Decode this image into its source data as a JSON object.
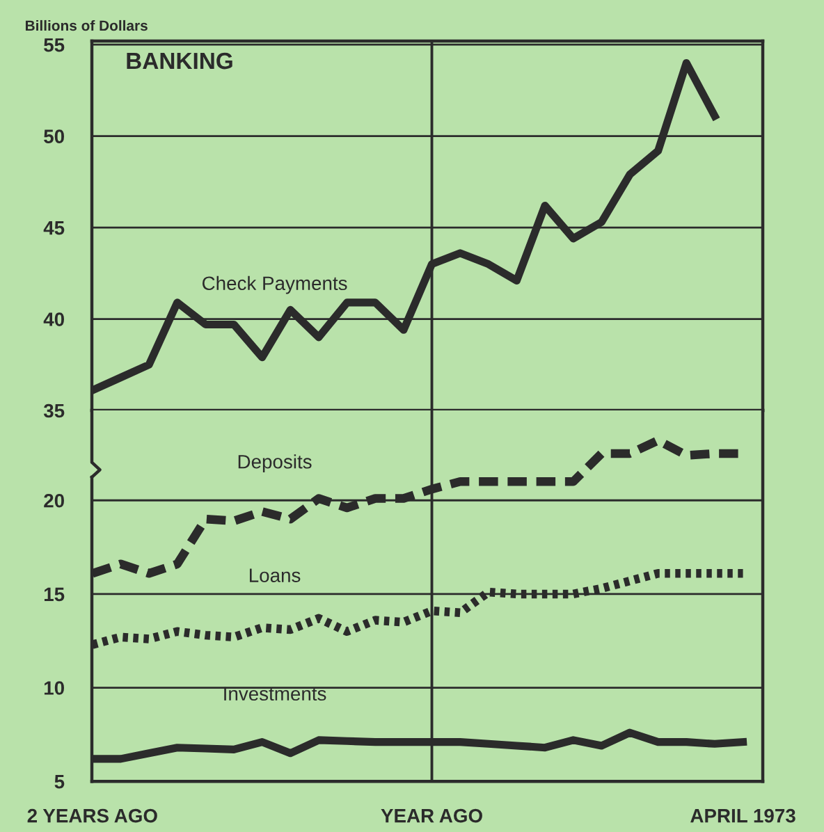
{
  "chart_data": [
    {
      "type": "line",
      "title": "BANKING",
      "ylabel": "Billions of Dollars",
      "ylim": [
        35,
        55.2
      ],
      "yticks": [
        35,
        40,
        45,
        50,
        55
      ],
      "tick_labels": "y",
      "grid": "y",
      "legend": false,
      "categories": [
        "2 YEARS AGO",
        null,
        null,
        null,
        null,
        null,
        null,
        null,
        null,
        null,
        null,
        null,
        "YEAR AGO",
        null,
        null,
        null,
        null,
        null,
        null,
        null,
        null,
        null,
        null,
        "APRIL 1973"
      ],
      "ref_lines": [
        {
          "axis": "x",
          "value": "YEAR AGO",
          "color": "#2b2b2b"
        }
      ],
      "series": [
        {
          "name": "Check Payments",
          "color": "#2b2b2b",
          "line_style": "solid",
          "values": [
            36.1,
            36.8,
            37.5,
            40.9,
            39.7,
            39.7,
            37.9,
            40.5,
            39.0,
            40.9,
            40.9,
            39.4,
            43.0,
            43.6,
            43.0,
            42.1,
            46.2,
            44.4,
            45.3,
            47.9,
            49.2,
            54.0,
            51.1,
            null
          ]
        }
      ]
    },
    {
      "type": "line",
      "ylim": [
        5,
        24.8
      ],
      "yticks": [
        5,
        10,
        15,
        20
      ],
      "grid": "y",
      "legend": false,
      "categories": [
        "2 YEARS AGO",
        null,
        null,
        null,
        null,
        null,
        null,
        null,
        null,
        null,
        null,
        null,
        "YEAR AGO",
        null,
        null,
        null,
        null,
        null,
        null,
        null,
        null,
        null,
        null,
        "APRIL 1973"
      ],
      "ref_lines": [
        {
          "axis": "x",
          "value": "YEAR AGO",
          "color": "#2b2b2b"
        }
      ],
      "series": [
        {
          "name": "Deposits",
          "color": "#2b2b2b",
          "line_style": "dashed",
          "values": [
            16.1,
            16.6,
            16.1,
            16.6,
            19.0,
            18.9,
            19.4,
            19.0,
            20.1,
            19.6,
            20.1,
            20.1,
            20.6,
            21.0,
            21.0,
            21.0,
            21.0,
            21.0,
            22.5,
            22.5,
            23.2,
            22.4,
            22.5,
            22.5
          ]
        },
        {
          "name": "Loans",
          "color": "#2b2b2b",
          "line_style": "dotted",
          "values": [
            12.3,
            12.7,
            12.6,
            13.0,
            12.8,
            12.7,
            13.2,
            13.1,
            13.7,
            13.0,
            13.6,
            13.5,
            14.1,
            14.0,
            15.1,
            15.0,
            15.0,
            15.0,
            15.3,
            15.7,
            16.1,
            16.1,
            16.1,
            16.1
          ]
        },
        {
          "name": "Investments",
          "color": "#2b2b2b",
          "line_style": "solid",
          "values": [
            6.2,
            6.2,
            6.5,
            6.8,
            6.75,
            6.7,
            7.1,
            6.5,
            7.2,
            7.15,
            7.1,
            7.1,
            7.1,
            7.1,
            7.0,
            6.9,
            6.8,
            7.2,
            6.9,
            7.6,
            7.1,
            7.1,
            7.0,
            7.1
          ]
        }
      ]
    }
  ]
}
